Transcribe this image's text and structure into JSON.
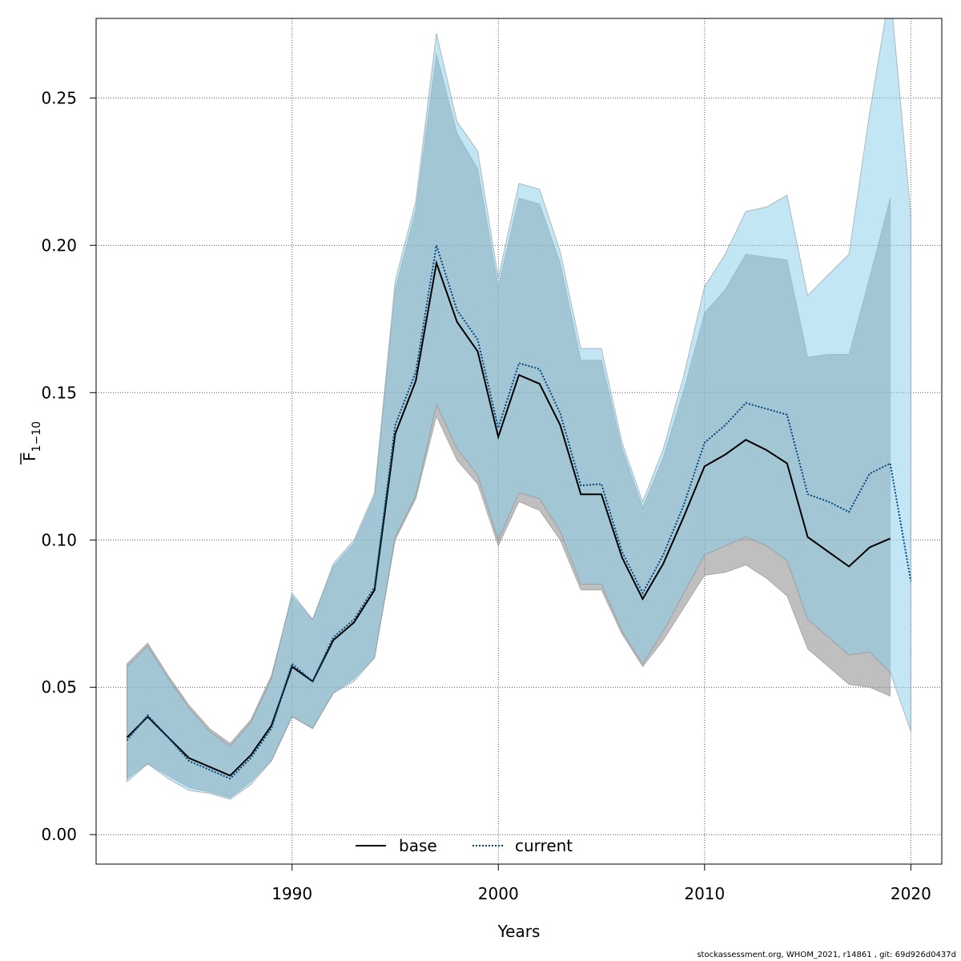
{
  "chart_data": {
    "type": "line",
    "xlabel": "Years",
    "ylabel": "F",
    "ylabel_subscript": "1−10",
    "xlim": [
      1980.5,
      2021.5
    ],
    "ylim": [
      -0.01,
      0.277
    ],
    "x_ticks": [
      {
        "value": 1990,
        "label": "1990"
      },
      {
        "value": 2000,
        "label": "2000"
      },
      {
        "value": 2010,
        "label": "2010"
      },
      {
        "value": 2020,
        "label": "2020"
      }
    ],
    "y_ticks": [
      {
        "value": 0.0,
        "label": "0.00"
      },
      {
        "value": 0.05,
        "label": "0.05"
      },
      {
        "value": 0.1,
        "label": "0.10"
      },
      {
        "value": 0.15,
        "label": "0.15"
      },
      {
        "value": 0.2,
        "label": "0.20"
      },
      {
        "value": 0.25,
        "label": "0.25"
      }
    ],
    "grid": true,
    "legend_position": "bottom-center",
    "series": [
      {
        "name": "base",
        "line_style": "solid",
        "line_color": "#000000",
        "band_color": "#7f7f7f",
        "x": [
          1982,
          1983,
          1984,
          1985,
          1986,
          1987,
          1988,
          1989,
          1990,
          1991,
          1992,
          1993,
          1994,
          1995,
          1996,
          1997,
          1998,
          1999,
          2000,
          2001,
          2002,
          2003,
          2004,
          2005,
          2006,
          2007,
          2008,
          2009,
          2010,
          2011,
          2012,
          2013,
          2014,
          2015,
          2016,
          2017,
          2018,
          2019
        ],
        "values": [
          0.033,
          0.04,
          0.033,
          0.026,
          0.023,
          0.02,
          0.027,
          0.037,
          0.057,
          0.052,
          0.066,
          0.072,
          0.083,
          0.136,
          0.154,
          0.194,
          0.174,
          0.164,
          0.135,
          0.156,
          0.153,
          0.139,
          0.1155,
          0.1155,
          0.094,
          0.08,
          0.092,
          0.108,
          0.125,
          0.129,
          0.134,
          0.1305,
          0.126,
          0.101,
          0.096,
          0.091,
          0.0975,
          0.1005
        ],
        "lower": [
          0.019,
          0.024,
          0.02,
          0.016,
          0.0145,
          0.0125,
          0.018,
          0.025,
          0.04,
          0.036,
          0.048,
          0.053,
          0.06,
          0.1,
          0.114,
          0.142,
          0.127,
          0.119,
          0.098,
          0.113,
          0.11,
          0.1,
          0.083,
          0.083,
          0.068,
          0.057,
          0.066,
          0.077,
          0.088,
          0.089,
          0.0915,
          0.087,
          0.081,
          0.063,
          0.057,
          0.051,
          0.05,
          0.047
        ],
        "upper": [
          0.058,
          0.065,
          0.054,
          0.044,
          0.036,
          0.031,
          0.039,
          0.054,
          0.081,
          0.073,
          0.091,
          0.099,
          0.115,
          0.185,
          0.212,
          0.265,
          0.238,
          0.226,
          0.186,
          0.216,
          0.214,
          0.194,
          0.161,
          0.161,
          0.131,
          0.111,
          0.128,
          0.151,
          0.177,
          0.185,
          0.197,
          0.196,
          0.195,
          0.162,
          0.163,
          0.163,
          0.189,
          0.216
        ]
      },
      {
        "name": "current",
        "line_style": "dotted",
        "line_color": "#00467f",
        "band_color": "#87ceeb",
        "x": [
          1982,
          1983,
          1984,
          1985,
          1986,
          1987,
          1988,
          1989,
          1990,
          1991,
          1992,
          1993,
          1994,
          1995,
          1996,
          1997,
          1998,
          1999,
          2000,
          2001,
          2002,
          2003,
          2004,
          2005,
          2006,
          2007,
          2008,
          2009,
          2010,
          2011,
          2012,
          2013,
          2014,
          2015,
          2016,
          2017,
          2018,
          2019,
          2020
        ],
        "values": [
          0.032,
          0.0405,
          0.033,
          0.025,
          0.022,
          0.019,
          0.026,
          0.036,
          0.058,
          0.052,
          0.067,
          0.073,
          0.084,
          0.139,
          0.157,
          0.2,
          0.178,
          0.168,
          0.138,
          0.16,
          0.158,
          0.143,
          0.1185,
          0.119,
          0.096,
          0.082,
          0.095,
          0.112,
          0.133,
          0.139,
          0.1465,
          0.1445,
          0.1425,
          0.1155,
          0.113,
          0.1095,
          0.1225,
          0.126,
          0.086
        ],
        "lower": [
          0.018,
          0.024,
          0.019,
          0.015,
          0.014,
          0.012,
          0.017,
          0.025,
          0.04,
          0.036,
          0.048,
          0.052,
          0.06,
          0.101,
          0.115,
          0.146,
          0.131,
          0.122,
          0.1,
          0.116,
          0.114,
          0.103,
          0.085,
          0.085,
          0.069,
          0.058,
          0.069,
          0.082,
          0.095,
          0.098,
          0.101,
          0.098,
          0.093,
          0.073,
          0.067,
          0.061,
          0.062,
          0.055,
          0.035
        ],
        "upper": [
          0.057,
          0.064,
          0.053,
          0.043,
          0.035,
          0.03,
          0.038,
          0.053,
          0.082,
          0.073,
          0.092,
          0.1,
          0.116,
          0.188,
          0.215,
          0.272,
          0.242,
          0.232,
          0.189,
          0.221,
          0.219,
          0.198,
          0.165,
          0.165,
          0.133,
          0.113,
          0.131,
          0.156,
          0.186,
          0.197,
          0.2115,
          0.213,
          0.217,
          0.183,
          0.19,
          0.197,
          0.245,
          0.287,
          0.21
        ]
      }
    ]
  },
  "footer_text": "stockassessment.org, WHOM_2021, r14861 , git: 69d926d0437d"
}
